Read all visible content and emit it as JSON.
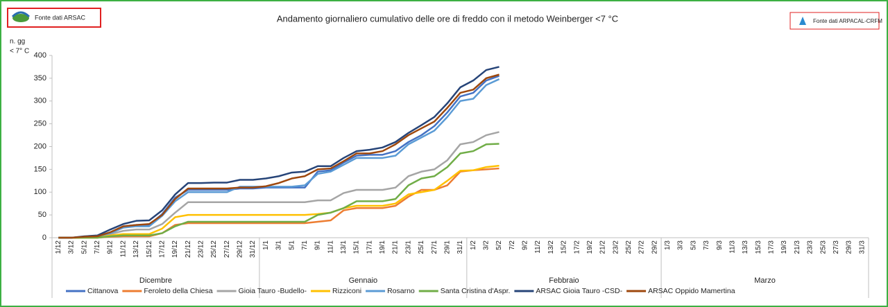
{
  "chart_data": {
    "type": "line",
    "title": "Andamento giornaliero cumulativo delle ore di freddo con il metodo Weinberger <7 °C",
    "source_left": "Fonte dati ARSAC",
    "source_right": "Fonte dati ARPACAL-CRFM",
    "y_label": [
      "n. gg",
      "< 7° C"
    ],
    "months": [
      "Dicembre",
      "Gennaio",
      "Febbraio",
      "Marzo"
    ],
    "categories": [
      "1/12",
      "3/12",
      "5/12",
      "7/12",
      "9/12",
      "11/12",
      "13/12",
      "15/12",
      "17/12",
      "19/12",
      "21/12",
      "23/12",
      "25/12",
      "27/12",
      "29/12",
      "31/12",
      "1/1",
      "3/1",
      "5/1",
      "7/1",
      "9/1",
      "11/1",
      "13/1",
      "15/1",
      "17/1",
      "19/1",
      "21/1",
      "23/1",
      "25/1",
      "27/1",
      "29/1",
      "31/1",
      "1/2",
      "3/2",
      "5/2",
      "7/2",
      "9/2",
      "11/2",
      "13/2",
      "15/2",
      "17/2",
      "19/2",
      "21/2",
      "23/2",
      "25/2",
      "27/2",
      "29/2",
      "1/3",
      "3/3",
      "5/3",
      "7/3",
      "9/3",
      "11/3",
      "13/3",
      "15/3",
      "17/3",
      "19/3",
      "21/3",
      "23/3",
      "25/3",
      "27/3",
      "29/3",
      "31/3"
    ],
    "ylim": [
      0,
      400
    ],
    "yticks": [
      0,
      50,
      100,
      150,
      200,
      250,
      300,
      350,
      400
    ],
    "grid": false,
    "legend": "bottom",
    "series": [
      {
        "name": "Cittanova",
        "color": "#4472c4",
        "values": [
          0,
          0,
          2,
          3,
          12,
          25,
          28,
          28,
          52,
          88,
          105,
          105,
          105,
          105,
          108,
          108,
          110,
          110,
          110,
          110,
          145,
          148,
          165,
          180,
          182,
          182,
          190,
          210,
          225,
          245,
          275,
          310,
          318,
          345,
          355,
          null,
          null,
          null,
          null,
          null,
          null,
          null,
          null,
          null,
          null,
          null,
          null,
          null,
          null,
          null,
          null,
          null,
          null,
          null,
          null,
          null,
          null,
          null,
          null,
          null,
          null,
          null,
          null
        ]
      },
      {
        "name": "Feroleto della Chiesa",
        "color": "#ed7d31",
        "values": [
          0,
          0,
          0,
          0,
          2,
          3,
          3,
          3,
          10,
          28,
          32,
          32,
          32,
          32,
          32,
          32,
          32,
          32,
          32,
          32,
          35,
          38,
          60,
          65,
          65,
          65,
          70,
          90,
          105,
          105,
          115,
          145,
          148,
          150,
          152,
          null,
          null,
          null,
          null,
          null,
          null,
          null,
          null,
          null,
          null,
          null,
          null,
          null,
          null,
          null,
          null,
          null,
          null,
          null,
          null,
          null,
          null,
          null,
          null,
          null,
          null,
          null,
          null
        ]
      },
      {
        "name": "Gioia Tauro -Budello-",
        "color": "#a5a5a5",
        "values": [
          0,
          0,
          0,
          2,
          8,
          15,
          18,
          18,
          30,
          55,
          78,
          78,
          78,
          78,
          78,
          78,
          78,
          78,
          78,
          78,
          82,
          82,
          98,
          105,
          105,
          105,
          110,
          135,
          145,
          150,
          170,
          205,
          210,
          225,
          232,
          null,
          null,
          null,
          null,
          null,
          null,
          null,
          null,
          null,
          null,
          null,
          null,
          null,
          null,
          null,
          null,
          null,
          null,
          null,
          null,
          null,
          null,
          null,
          null,
          null,
          null,
          null,
          null
        ]
      },
      {
        "name": "Rizziconi",
        "color": "#ffc000",
        "values": [
          0,
          0,
          0,
          0,
          5,
          8,
          8,
          8,
          20,
          45,
          50,
          50,
          50,
          50,
          50,
          50,
          50,
          50,
          50,
          50,
          52,
          55,
          65,
          70,
          70,
          70,
          75,
          95,
          100,
          105,
          125,
          147,
          148,
          155,
          158,
          null,
          null,
          null,
          null,
          null,
          null,
          null,
          null,
          null,
          null,
          null,
          null,
          null,
          null,
          null,
          null,
          null,
          null,
          null,
          null,
          null,
          null,
          null,
          null,
          null,
          null,
          null,
          null
        ]
      },
      {
        "name": "Rosarno",
        "color": "#5b9bd5",
        "values": [
          0,
          0,
          2,
          3,
          10,
          22,
          25,
          25,
          48,
          80,
          100,
          100,
          100,
          100,
          112,
          112,
          112,
          112,
          112,
          115,
          140,
          145,
          160,
          175,
          175,
          175,
          180,
          205,
          220,
          235,
          265,
          300,
          305,
          335,
          348,
          null,
          null,
          null,
          null,
          null,
          null,
          null,
          null,
          null,
          null,
          null,
          null,
          null,
          null,
          null,
          null,
          null,
          null,
          null,
          null,
          null,
          null,
          null,
          null,
          null,
          null,
          null,
          null
        ]
      },
      {
        "name": "Santa Cristina d'Aspr.",
        "color": "#70ad47",
        "values": [
          0,
          0,
          0,
          0,
          3,
          5,
          5,
          5,
          10,
          25,
          35,
          35,
          35,
          35,
          35,
          35,
          35,
          35,
          35,
          35,
          50,
          55,
          65,
          80,
          80,
          80,
          85,
          115,
          130,
          135,
          155,
          185,
          190,
          205,
          206,
          null,
          null,
          null,
          null,
          null,
          null,
          null,
          null,
          null,
          null,
          null,
          null,
          null,
          null,
          null,
          null,
          null,
          null,
          null,
          null,
          null,
          null,
          null,
          null,
          null,
          null,
          null,
          null
        ]
      },
      {
        "name": "ARSAC Gioia Tauro -CSD-",
        "color": "#264478",
        "values": [
          0,
          0,
          3,
          5,
          18,
          30,
          37,
          38,
          60,
          95,
          120,
          120,
          121,
          121,
          127,
          127,
          130,
          135,
          143,
          145,
          157,
          157,
          175,
          190,
          193,
          198,
          210,
          230,
          247,
          265,
          295,
          330,
          345,
          368,
          375,
          null,
          null,
          null,
          null,
          null,
          null,
          null,
          null,
          null,
          null,
          null,
          null,
          null,
          null,
          null,
          null,
          null,
          null,
          null,
          null,
          null,
          null,
          null,
          null,
          null,
          null,
          null,
          null
        ]
      },
      {
        "name": "ARSAC Oppido Mamertina",
        "color": "#9e480e",
        "values": [
          0,
          0,
          2,
          3,
          12,
          25,
          28,
          30,
          50,
          85,
          108,
          108,
          108,
          108,
          110,
          110,
          113,
          120,
          130,
          135,
          150,
          152,
          168,
          185,
          185,
          190,
          205,
          225,
          240,
          255,
          285,
          318,
          325,
          350,
          358,
          null,
          null,
          null,
          null,
          null,
          null,
          null,
          null,
          null,
          null,
          null,
          null,
          null,
          null,
          null,
          null,
          null,
          null,
          null,
          null,
          null,
          null,
          null,
          null,
          null,
          null,
          null,
          null
        ]
      }
    ]
  }
}
